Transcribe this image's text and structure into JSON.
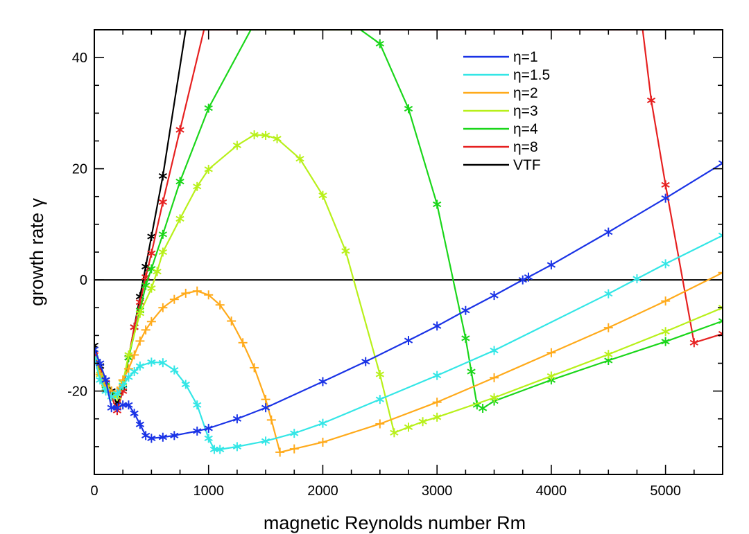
{
  "chart_data": {
    "type": "line",
    "xlabel": "magnetic Reynolds number Rm",
    "ylabel": "growth rate γ",
    "xlim": [
      0,
      5500
    ],
    "ylim": [
      -35,
      45
    ],
    "xticks": [
      0,
      1000,
      2000,
      3000,
      4000,
      5000
    ],
    "xtick_labels": [
      "0",
      "1000",
      "2000",
      "3000",
      "4000",
      "5000"
    ],
    "yticks": [
      -20,
      0,
      20,
      40
    ],
    "ytick_labels": [
      "-20",
      "0",
      "20",
      "40"
    ],
    "zero_line": 0,
    "grid": false,
    "legend_position": "top-right",
    "series": [
      {
        "name": "η=1",
        "color": "#1a33e6",
        "marker": "star",
        "points": [
          [
            0,
            -12.5
          ],
          [
            50,
            -15
          ],
          [
            100,
            -18
          ],
          [
            150,
            -23
          ],
          [
            200,
            -23
          ],
          [
            250,
            -22.5
          ],
          [
            300,
            -22.5
          ],
          [
            350,
            -24
          ],
          [
            400,
            -26
          ],
          [
            450,
            -28
          ],
          [
            500,
            -28.5
          ],
          [
            600,
            -28.3
          ],
          [
            700,
            -28
          ],
          [
            900,
            -27.2
          ],
          [
            1000,
            -26.7
          ],
          [
            1250,
            -25
          ],
          [
            1500,
            -23
          ],
          [
            2000,
            -18.3
          ],
          [
            2375,
            -14.7
          ],
          [
            2750,
            -10.9
          ],
          [
            3000,
            -8.3
          ],
          [
            3250,
            -5.5
          ],
          [
            3500,
            -2.8
          ],
          [
            3750,
            0
          ],
          [
            3800,
            0.5
          ],
          [
            4000,
            2.7
          ],
          [
            4500,
            8.6
          ],
          [
            5000,
            14.7
          ],
          [
            5500,
            21
          ]
        ]
      },
      {
        "name": "η=1.5",
        "color": "#33e6e6",
        "marker": "star",
        "points": [
          [
            0,
            -14
          ],
          [
            50,
            -18
          ],
          [
            100,
            -20
          ],
          [
            150,
            -21
          ],
          [
            200,
            -20.5
          ],
          [
            250,
            -19
          ],
          [
            300,
            -17.5
          ],
          [
            350,
            -16.5
          ],
          [
            400,
            -15.5
          ],
          [
            500,
            -14.8
          ],
          [
            600,
            -14.9
          ],
          [
            700,
            -16.2
          ],
          [
            800,
            -18.8
          ],
          [
            900,
            -22.5
          ],
          [
            1000,
            -28.5
          ],
          [
            1050,
            -30.5
          ],
          [
            1100,
            -30.5
          ],
          [
            1250,
            -30
          ],
          [
            1500,
            -29
          ],
          [
            1750,
            -27.6
          ],
          [
            2000,
            -25.8
          ],
          [
            2500,
            -21.5
          ],
          [
            3000,
            -17.2
          ],
          [
            3500,
            -12.7
          ],
          [
            4500,
            -2.5
          ],
          [
            4750,
            0.2
          ],
          [
            5000,
            2.9
          ],
          [
            5500,
            8
          ]
        ]
      },
      {
        "name": "η=2",
        "color": "#ffaa1a",
        "marker": "plus",
        "points": [
          [
            0,
            -14
          ],
          [
            50,
            -17
          ],
          [
            100,
            -19
          ],
          [
            150,
            -20
          ],
          [
            200,
            -20
          ],
          [
            250,
            -18
          ],
          [
            300,
            -16
          ],
          [
            350,
            -13.5
          ],
          [
            400,
            -11
          ],
          [
            450,
            -9
          ],
          [
            500,
            -7.5
          ],
          [
            600,
            -5
          ],
          [
            700,
            -3.5
          ],
          [
            800,
            -2.4
          ],
          [
            900,
            -2
          ],
          [
            1000,
            -2.7
          ],
          [
            1100,
            -4.5
          ],
          [
            1200,
            -7.4
          ],
          [
            1300,
            -11.3
          ],
          [
            1400,
            -15.8
          ],
          [
            1500,
            -21.5
          ],
          [
            1550,
            -25.2
          ],
          [
            1625,
            -31
          ],
          [
            1750,
            -30.4
          ],
          [
            2000,
            -29.2
          ],
          [
            2500,
            -25.9
          ],
          [
            3000,
            -22
          ],
          [
            3500,
            -17.6
          ],
          [
            4000,
            -13.1
          ],
          [
            4500,
            -8.6
          ],
          [
            5000,
            -3.8
          ],
          [
            5500,
            1.3
          ]
        ]
      },
      {
        "name": "η=3",
        "color": "#b8f01a",
        "marker": "star",
        "points": [
          [
            0,
            -14
          ],
          [
            50,
            -17
          ],
          [
            100,
            -19.5
          ],
          [
            150,
            -21
          ],
          [
            200,
            -21
          ],
          [
            250,
            -18.5
          ],
          [
            300,
            -13.5
          ],
          [
            400,
            -6
          ],
          [
            500,
            -1.5
          ],
          [
            550,
            1.5
          ],
          [
            600,
            5
          ],
          [
            750,
            11
          ],
          [
            900,
            16.8
          ],
          [
            1000,
            19.9
          ],
          [
            1250,
            24.2
          ],
          [
            1400,
            26.1
          ],
          [
            1500,
            26
          ],
          [
            1600,
            25.4
          ],
          [
            1800,
            21.8
          ],
          [
            2000,
            15.2
          ],
          [
            2200,
            5.2
          ],
          [
            2500,
            -17
          ],
          [
            2625,
            -27.5
          ],
          [
            2750,
            -26.5
          ],
          [
            2875,
            -25.5
          ],
          [
            3000,
            -24.7
          ],
          [
            3500,
            -21.2
          ],
          [
            4000,
            -17.3
          ],
          [
            4500,
            -13.4
          ],
          [
            5000,
            -9.3
          ],
          [
            5500,
            -5
          ]
        ]
      },
      {
        "name": "η=4",
        "color": "#1ad61a",
        "marker": "star",
        "points": [
          [
            0,
            -14
          ],
          [
            100,
            -19
          ],
          [
            200,
            -21
          ],
          [
            250,
            -19
          ],
          [
            300,
            -14
          ],
          [
            400,
            -5.5
          ],
          [
            450,
            -1
          ],
          [
            500,
            2
          ],
          [
            600,
            8.2
          ],
          [
            750,
            17.7
          ],
          [
            1000,
            30.9
          ],
          [
            1370,
            45
          ],
          [
            2330,
            45
          ],
          [
            2500,
            42.5
          ],
          [
            2750,
            30.8
          ],
          [
            3000,
            13.6
          ],
          [
            3250,
            -10.5
          ],
          [
            3300,
            -16.5
          ],
          [
            3350,
            -22.5
          ],
          [
            3400,
            -23.1
          ],
          [
            3500,
            -21.8
          ],
          [
            4000,
            -18
          ],
          [
            4500,
            -14.5
          ],
          [
            5000,
            -11.1
          ],
          [
            5500,
            -7.4
          ]
        ]
      },
      {
        "name": "η=8",
        "color": "#e62020",
        "marker": "star",
        "points": [
          [
            0,
            -13.5
          ],
          [
            100,
            -18.5
          ],
          [
            200,
            -23.5
          ],
          [
            250,
            -20
          ],
          [
            300,
            -14
          ],
          [
            350,
            -8.5
          ],
          [
            400,
            -4
          ],
          [
            450,
            0.5
          ],
          [
            500,
            4.8
          ],
          [
            600,
            14
          ],
          [
            750,
            27
          ],
          [
            960,
            45
          ],
          [
            4800,
            45
          ],
          [
            4875,
            32.3
          ],
          [
            5000,
            17.1
          ],
          [
            5250,
            -11.3
          ],
          [
            5500,
            -9.7
          ]
        ]
      },
      {
        "name": "VTF",
        "color": "#000000",
        "marker": "star",
        "points": [
          [
            0,
            -11.8
          ],
          [
            50,
            -15.5
          ],
          [
            100,
            -18
          ],
          [
            150,
            -20
          ],
          [
            200,
            -22.5
          ],
          [
            250,
            -19.5
          ],
          [
            300,
            -14
          ],
          [
            350,
            -8.5
          ],
          [
            400,
            -3
          ],
          [
            450,
            2.4
          ],
          [
            500,
            7.8
          ],
          [
            600,
            18.7
          ],
          [
            800,
            45
          ]
        ]
      }
    ]
  }
}
